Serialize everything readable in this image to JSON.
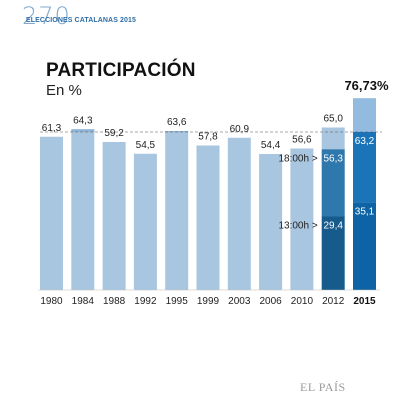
{
  "header": {
    "number": "270",
    "label": "ELECCIONES CATALANAS 2015"
  },
  "footer": {
    "logo": "EL PAÍS"
  },
  "colors": {
    "bar_light": "#a8c6e0",
    "bar_top": "#8fb4d6",
    "bar_2012_base": "#175a8c",
    "bar_2012_mid": "#2f78ad",
    "bar_2015_base": "#0d63a5",
    "bar_2015_mid": "#1b74b8",
    "bar_2015_top": "#93bbdf",
    "text_dark": "#222222",
    "text_white": "#ffffff",
    "dashed": "#555555"
  },
  "chart_data": {
    "type": "bar",
    "title": "PARTICIPACIÓN",
    "subtitle": "En %",
    "categories": [
      "1980",
      "1984",
      "1988",
      "1992",
      "1995",
      "1999",
      "2003",
      "2006",
      "2010",
      "2012",
      "2015"
    ],
    "values": [
      61.3,
      64.3,
      59.2,
      54.5,
      63.6,
      57.8,
      60.9,
      54.4,
      56.6,
      65.0,
      76.73
    ],
    "value_labels": [
      "61,3",
      "64,3",
      "59,2",
      "54,5",
      "63,6",
      "57,8",
      "60,9",
      "54,4",
      "56,6",
      "65,0",
      "76,73%"
    ],
    "highlight_category": "2015",
    "ylim": [
      0,
      80
    ],
    "reference_line_value": 63.2,
    "grid": false,
    "partials": {
      "labels": [
        "18:00h >",
        "13:00h >"
      ],
      "series": [
        {
          "category": "2012",
          "values": [
            56.3,
            29.4
          ],
          "labels": [
            "56,3",
            "29,4"
          ]
        },
        {
          "category": "2015",
          "values": [
            63.2,
            35.1
          ],
          "labels": [
            "63,2",
            "35,1"
          ]
        }
      ]
    }
  }
}
